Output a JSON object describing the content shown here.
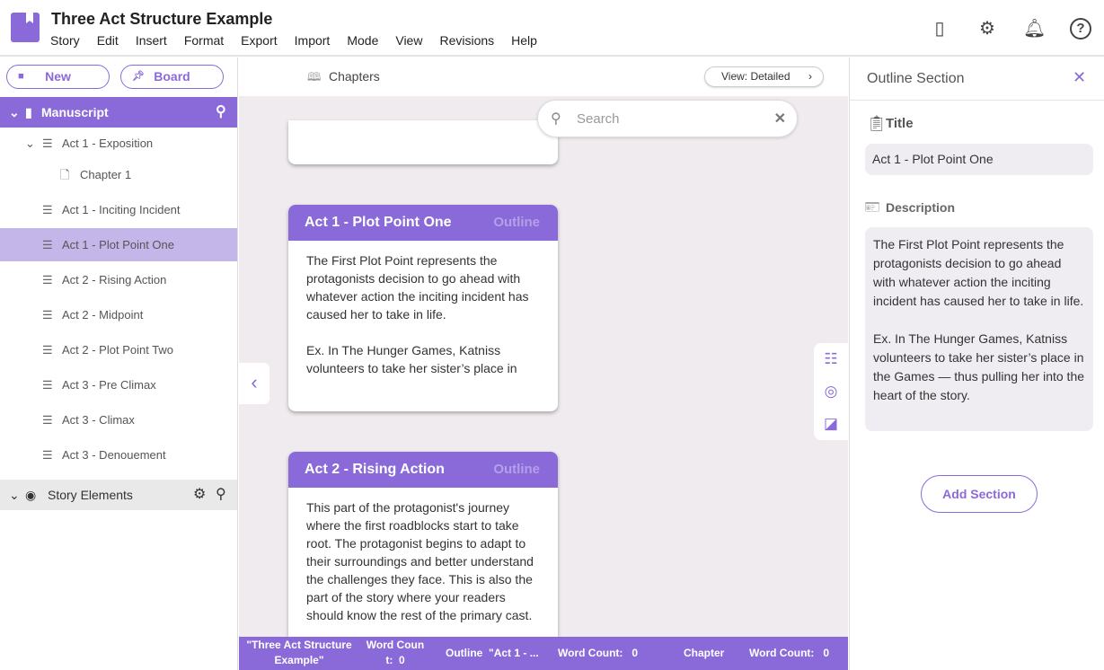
{
  "app": {
    "title": "Three Act Structure Example",
    "menu": [
      "Story",
      "Edit",
      "Insert",
      "Format",
      "Export",
      "Import",
      "Mode",
      "View",
      "Revisions",
      "Help"
    ]
  },
  "sidebar": {
    "new_label": "New",
    "board_label": "Board",
    "manuscript": "Manuscript",
    "items": [
      {
        "label": "Act 1 - Exposition"
      },
      {
        "label": "Chapter 1"
      },
      {
        "label": "Act 1 - Inciting Incident"
      },
      {
        "label": "Act 1 - Plot Point One"
      },
      {
        "label": "Act 2 - Rising Action"
      },
      {
        "label": "Act 2 - Midpoint"
      },
      {
        "label": "Act 2 - Plot Point Two"
      },
      {
        "label": "Act 3 - Pre Climax"
      },
      {
        "label": "Act 3 - Climax"
      },
      {
        "label": "Act 3 - Denouement"
      }
    ],
    "story_elements": "Story Elements"
  },
  "center": {
    "chapters": "Chapters",
    "view_label": "View: Detailed",
    "search_placeholder": "Search",
    "cards": [
      {
        "title": "Act 1 - Plot Point One",
        "tag": "Outline",
        "body": "The First Plot Point represents the protagonists decision to go ahead with whatever action the inciting incident has caused her to take in life.\n\nEx. In The Hunger Games, Katniss volunteers to take her sister’s place in"
      },
      {
        "title": "Act 2 - Rising Action",
        "tag": "Outline",
        "body": "This part of the protagonist's journey where the first roadblocks start to take root. The protagonist begins to adapt to their surroundings and better understand the challenges they face. This is also the part of the story where your readers should know the rest of the primary cast."
      }
    ]
  },
  "status": {
    "story": "\"Three Act Structure Example\"",
    "wc1": "Word Coun t:  0",
    "outline": "Outline  \"Act 1 - ...",
    "wc2": "Word Count:   0",
    "chapter": "Chapter",
    "wc3": "Word Count:   0"
  },
  "panel": {
    "heading": "Outline Section",
    "title_label": "Title",
    "title_value": "Act 1 - Plot Point One",
    "desc_label": "Description",
    "desc_value": "The First Plot Point represents the protagonists decision to go ahead with whatever action the inciting incident has caused her to take in life.\n\nEx. In The Hunger Games, Katniss volunteers to take her sister’s place in the Games — thus pulling her into the heart of the story.",
    "add_label": "Add Section"
  },
  "colors": {
    "accent": "#8a6ad8",
    "selected": "#c5b6ea"
  }
}
